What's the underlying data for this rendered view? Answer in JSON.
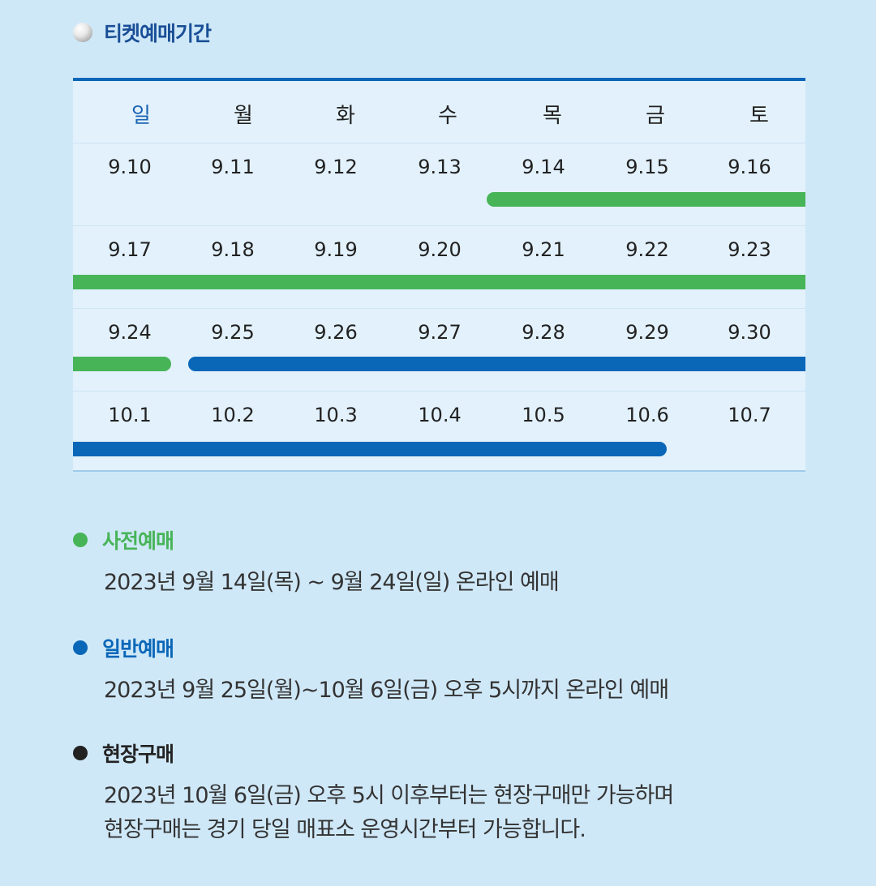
{
  "header": {
    "title": "티켓예매기간",
    "icon": "baseball-icon"
  },
  "calendar": {
    "days": [
      "일",
      "월",
      "화",
      "수",
      "목",
      "금",
      "토"
    ],
    "weeks": [
      [
        "9.10",
        "9.11",
        "9.12",
        "9.13",
        "9.14",
        "9.15",
        "9.16"
      ],
      [
        "9.17",
        "9.18",
        "9.19",
        "9.20",
        "9.21",
        "9.22",
        "9.23"
      ],
      [
        "9.24",
        "9.25",
        "9.26",
        "9.27",
        "9.28",
        "9.29",
        "9.30"
      ],
      [
        "10.1",
        "10.2",
        "10.3",
        "10.4",
        "10.5",
        "10.6",
        "10.7"
      ]
    ],
    "colors": {
      "presale": "#47b458",
      "general": "#0a67b8",
      "sunday": "#1a63b4",
      "accent": "#0a67b8"
    }
  },
  "sections": [
    {
      "title": "사전예매",
      "color": "#47b458",
      "lines": [
        "2023년 9월 14일(목) ~ 9월 24일(일) 온라인 예매"
      ]
    },
    {
      "title": "일반예매",
      "color": "#0a67b8",
      "lines": [
        "2023년 9월 25일(월)~10월 6일(금) 오후 5시까지 온라인 예매"
      ]
    },
    {
      "title": "현장구매",
      "color": "#222222",
      "lines": [
        "2023년 10월 6일(금) 오후 5시 이후부터는 현장구매만 가능하며",
        "현장구매는 경기 당일 매표소 운영시간부터 가능합니다."
      ]
    }
  ]
}
